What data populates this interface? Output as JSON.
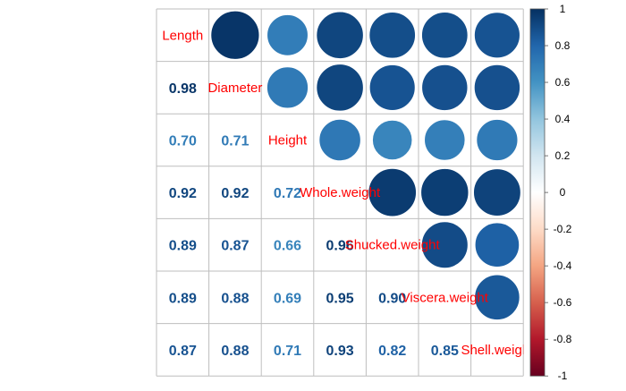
{
  "chart_data": {
    "type": "heatmap",
    "variables": [
      "Length",
      "Diameter",
      "Height",
      "Whole.weight",
      "Shucked.weight",
      "Viscera.weight",
      "Shell.weight"
    ],
    "matrix": [
      [
        1.0,
        0.98,
        0.7,
        0.92,
        0.89,
        0.89,
        0.87
      ],
      [
        0.98,
        1.0,
        0.71,
        0.92,
        0.87,
        0.88,
        0.88
      ],
      [
        0.7,
        0.71,
        1.0,
        0.72,
        0.66,
        0.69,
        0.71
      ],
      [
        0.92,
        0.92,
        0.72,
        1.0,
        0.96,
        0.95,
        0.93
      ],
      [
        0.89,
        0.87,
        0.66,
        0.96,
        1.0,
        0.9,
        0.82
      ],
      [
        0.89,
        0.88,
        0.69,
        0.95,
        0.9,
        1.0,
        0.85
      ],
      [
        0.87,
        0.88,
        0.71,
        0.93,
        0.82,
        0.85,
        1.0
      ]
    ],
    "lower_labels": [
      [
        "0.98"
      ],
      [
        "0.70",
        "0.71"
      ],
      [
        "0.92",
        "0.92",
        "0.72"
      ],
      [
        "0.89",
        "0.87",
        "0.66",
        "0.96"
      ],
      [
        "0.89",
        "0.88",
        "0.69",
        "0.95",
        "0.90"
      ],
      [
        "0.87",
        "0.88",
        "0.71",
        "0.93",
        "0.82",
        "0.85"
      ]
    ],
    "colorbar": {
      "ticks": [
        "1",
        "0.8",
        "0.6",
        "0.4",
        "0.2",
        "0",
        "-0.2",
        "-0.4",
        "-0.6",
        "-0.8",
        "-1"
      ],
      "range": [
        -1,
        1
      ]
    },
    "colors": {
      "diagonal_label": "#ff0000",
      "grid": "#bebebe",
      "scale": [
        "#67001f",
        "#b2182b",
        "#d6604d",
        "#f4a582",
        "#fddbc7",
        "#ffffff",
        "#d1e5f0",
        "#92c5de",
        "#4393c3",
        "#2166ac",
        "#053061"
      ]
    },
    "upper_style": "circle",
    "lower_style": "number"
  }
}
